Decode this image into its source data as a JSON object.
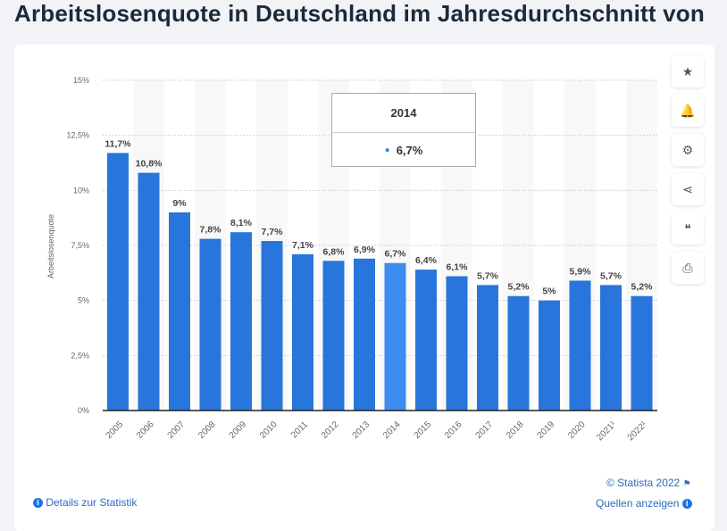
{
  "title": "Arbeitslosenquote in Deutschland im Jahresdurchschnitt von",
  "colors": {
    "bar": "#2875dc",
    "bar_highlight": "#3f8cf2",
    "axis": "#222222"
  },
  "side_buttons": [
    {
      "icon": "star-icon",
      "glyph": "★"
    },
    {
      "icon": "bell-icon",
      "glyph": "🔔"
    },
    {
      "icon": "gear-icon",
      "glyph": "⚙"
    },
    {
      "icon": "share-icon",
      "glyph": "⋖"
    },
    {
      "icon": "quote-icon",
      "glyph": "❝"
    },
    {
      "icon": "print-icon",
      "glyph": "⎙"
    }
  ],
  "tooltip": {
    "year": "2014",
    "value": "6,7%"
  },
  "footer": {
    "copyright": "© Statista 2022",
    "sources": "Quellen anzeigen",
    "details": "Details zur Statistik"
  },
  "chart_data": {
    "type": "bar",
    "title": "Arbeitslosenquote in Deutschland im Jahresdurchschnitt von",
    "xlabel": "",
    "ylabel": "Arbeitslosenquote",
    "ylim": [
      0,
      15
    ],
    "yticks": [
      "0%",
      "2,5%",
      "5%",
      "7,5%",
      "10%",
      "12,5%",
      "15%"
    ],
    "ytick_values": [
      0,
      2.5,
      5,
      7.5,
      10,
      12.5,
      15
    ],
    "grid": true,
    "categories": [
      "2005",
      "2006",
      "2007",
      "2008",
      "2009",
      "2010",
      "2011",
      "2012",
      "2013",
      "2014",
      "2015",
      "2016",
      "2017",
      "2018",
      "2019",
      "2020",
      "2021¹",
      "2022¹"
    ],
    "values": [
      11.7,
      10.8,
      9,
      7.8,
      8.1,
      7.7,
      7.1,
      6.8,
      6.9,
      6.7,
      6.4,
      6.1,
      5.7,
      5.2,
      5,
      5.9,
      5.7,
      5.2
    ],
    "labels": [
      "11,7%",
      "10,8%",
      "9%",
      "7,8%",
      "8,1%",
      "7,7%",
      "7,1%",
      "6,8%",
      "6,9%",
      "6,7%",
      "6,4%",
      "6,1%",
      "5,7%",
      "5,2%",
      "5%",
      "5,9%",
      "5,7%",
      "5,2%"
    ],
    "highlighted": "2014"
  }
}
